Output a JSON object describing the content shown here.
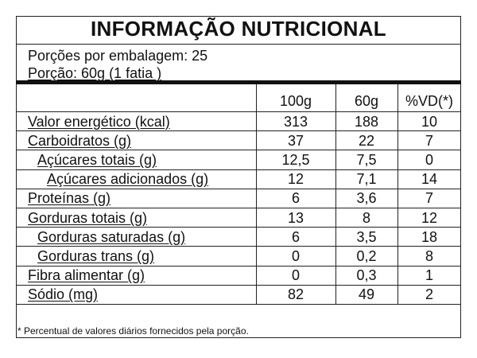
{
  "header": {
    "title": "INFORMAÇÃO NUTRICIONAL"
  },
  "serving": {
    "portions": "Porções por embalagem: 25",
    "portion": "Porção: 60g (1 fatia )"
  },
  "table": {
    "columns": [
      "100g",
      "60g",
      "%VD(*)"
    ],
    "rows": [
      [
        "Valor energético (kcal)",
        "313",
        "188",
        "10"
      ],
      [
        "Carboidratos (g)",
        "37",
        "22",
        "7"
      ],
      [
        "Açúcares totais (g)",
        "12,5",
        "7,5",
        "0"
      ],
      [
        "Açúcares adicionados (g)",
        "12",
        "7,1",
        "14"
      ],
      [
        "Proteínas (g)",
        "6",
        "3,6",
        "7"
      ],
      [
        "Gorduras totais (g)",
        "13",
        "8",
        "12"
      ],
      [
        "Gorduras saturadas (g)",
        "6",
        "3,5",
        "18"
      ],
      [
        "Gorduras trans (g)",
        "0",
        "0,2",
        "8"
      ],
      [
        "Fibra alimentar (g)",
        "0",
        "0,3",
        "1"
      ],
      [
        "Sódio (mg)",
        "82",
        "49",
        "2"
      ]
    ]
  },
  "footnote": "* Percentual de valores diários fornecidos pela porção."
}
